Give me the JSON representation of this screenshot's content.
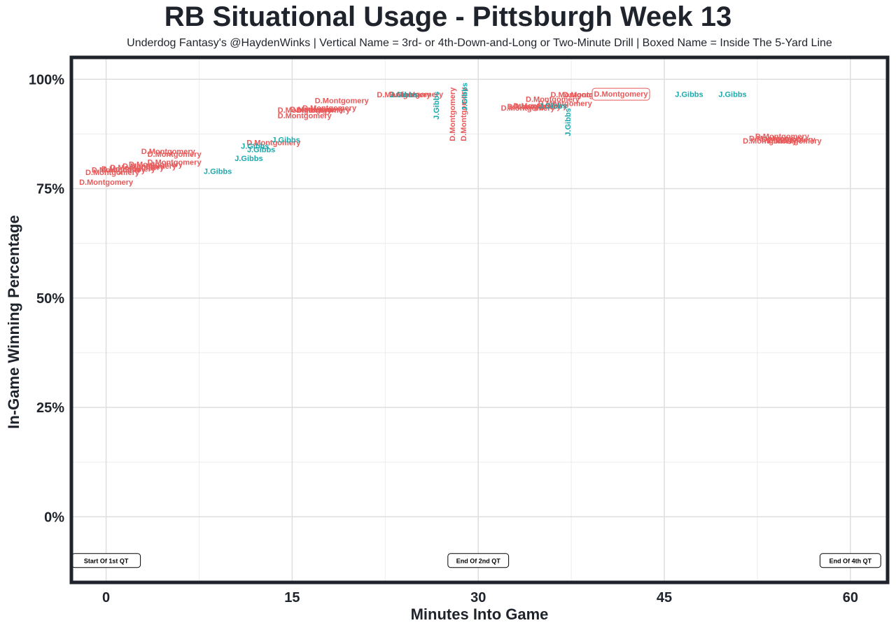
{
  "chart_data": {
    "type": "scatter",
    "title": "RB Situational Usage - Pittsburgh Week 13",
    "subtitle": "Underdog Fantasy's @HaydenWinks | Vertical Name = 3rd- or 4th-Down-and-Long or Two-Minute Drill | Boxed Name = Inside The 5-Yard Line",
    "xlabel": "Minutes Into Game",
    "ylabel": "In-Game Winning Percentage",
    "xlim": [
      -2.8,
      63
    ],
    "ylim": [
      -15,
      105
    ],
    "x_ticks": [
      0,
      15,
      30,
      45,
      60
    ],
    "x_tick_labels": [
      "0",
      "15",
      "30",
      "45",
      "60"
    ],
    "y_ticks": [
      0,
      25,
      50,
      75,
      100
    ],
    "y_tick_labels": [
      "0%",
      "25%",
      "50%",
      "75%",
      "100%"
    ],
    "grid": true,
    "colors": {
      "D.Montgomery": "#e8595a",
      "J.Gibbs": "#1aa9ad"
    },
    "series": [
      {
        "name": "D.Montgomery",
        "points": [
          {
            "x": 0.0,
            "y": 76.5
          },
          {
            "x": 0.5,
            "y": 78.8
          },
          {
            "x": 1.0,
            "y": 79.3
          },
          {
            "x": 1.8,
            "y": 79.6
          },
          {
            "x": 2.5,
            "y": 79.9
          },
          {
            "x": 3.5,
            "y": 80.2
          },
          {
            "x": 4.0,
            "y": 80.6
          },
          {
            "x": 5.5,
            "y": 81.1
          },
          {
            "x": 5.0,
            "y": 83.6
          },
          {
            "x": 5.5,
            "y": 82.9
          },
          {
            "x": 13.5,
            "y": 85.6
          },
          {
            "x": 16.0,
            "y": 93.0
          },
          {
            "x": 17.0,
            "y": 93.2
          },
          {
            "x": 17.5,
            "y": 93.0
          },
          {
            "x": 18.0,
            "y": 93.5
          },
          {
            "x": 16.0,
            "y": 91.7
          },
          {
            "x": 19.0,
            "y": 95.2
          },
          {
            "x": 24.0,
            "y": 96.5
          },
          {
            "x": 25.0,
            "y": 96.6
          },
          {
            "x": 27.9,
            "y": 92.0,
            "vertical": true
          },
          {
            "x": 28.8,
            "y": 92.0,
            "vertical": true
          },
          {
            "x": 34.0,
            "y": 93.5
          },
          {
            "x": 34.5,
            "y": 93.8
          },
          {
            "x": 35.0,
            "y": 94.0
          },
          {
            "x": 36.0,
            "y": 95.5
          },
          {
            "x": 37.0,
            "y": 94.5
          },
          {
            "x": 38.0,
            "y": 96.5
          },
          {
            "x": 39.0,
            "y": 96.5
          },
          {
            "x": 41.5,
            "y": 96.5,
            "boxed": true
          },
          {
            "x": 54.5,
            "y": 87.0
          },
          {
            "x": 54.0,
            "y": 86.5
          },
          {
            "x": 55.0,
            "y": 86.3
          },
          {
            "x": 55.5,
            "y": 86.0
          },
          {
            "x": 53.5,
            "y": 86.0
          }
        ]
      },
      {
        "name": "J.Gibbs",
        "points": [
          {
            "x": 9.0,
            "y": 79.0
          },
          {
            "x": 11.5,
            "y": 82.0
          },
          {
            "x": 12.5,
            "y": 84.0
          },
          {
            "x": 12.0,
            "y": 84.8
          },
          {
            "x": 14.5,
            "y": 86.2
          },
          {
            "x": 24.0,
            "y": 96.5
          },
          {
            "x": 26.6,
            "y": 94.0,
            "vertical": true
          },
          {
            "x": 28.9,
            "y": 96.0,
            "vertical": true
          },
          {
            "x": 36.0,
            "y": 94.0
          },
          {
            "x": 37.2,
            "y": 90.2,
            "vertical": true
          },
          {
            "x": 47.0,
            "y": 96.6
          },
          {
            "x": 50.5,
            "y": 96.6
          }
        ]
      }
    ],
    "annotations": [
      {
        "x": 0,
        "label": "Start Of 1st QT"
      },
      {
        "x": 30,
        "label": "End Of 2nd QT"
      },
      {
        "x": 60,
        "label": "End Of 4th QT"
      }
    ]
  }
}
